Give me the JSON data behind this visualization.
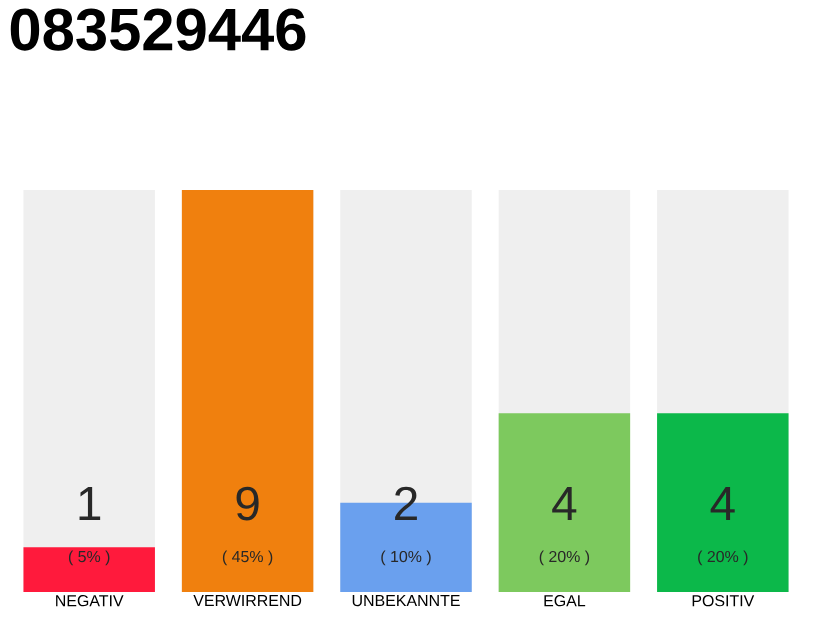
{
  "chart_data": {
    "type": "bar",
    "title": "083529446",
    "categories": [
      "NEGATIV",
      "VERWIRREND",
      "UNBEKANNTE",
      "EGAL",
      "POSITIV"
    ],
    "values": [
      1,
      9,
      2,
      4,
      4
    ],
    "colors": [
      "#ff1a3c",
      "#f0800e",
      "#6aa0ee",
      "#7dc95e",
      "#0cb84a"
    ],
    "data_labels": true,
    "annotations": [
      "( 5% )",
      "( 45% )",
      "( 10% )",
      "( 20% )",
      "( 20% )"
    ]
  }
}
